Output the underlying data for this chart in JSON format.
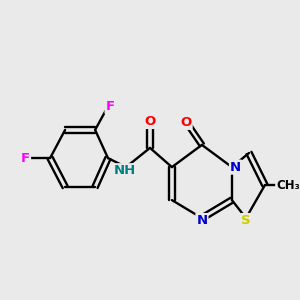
{
  "bg_color": "#eaeaea",
  "bond_color": "#000000",
  "atom_colors": {
    "F": "#ff00ff",
    "O": "#ff0000",
    "N": "#0000cc",
    "S": "#cccc00",
    "NH": "#008080",
    "C": "#000000"
  },
  "figsize": [
    3.0,
    3.0
  ],
  "dpi": 100
}
